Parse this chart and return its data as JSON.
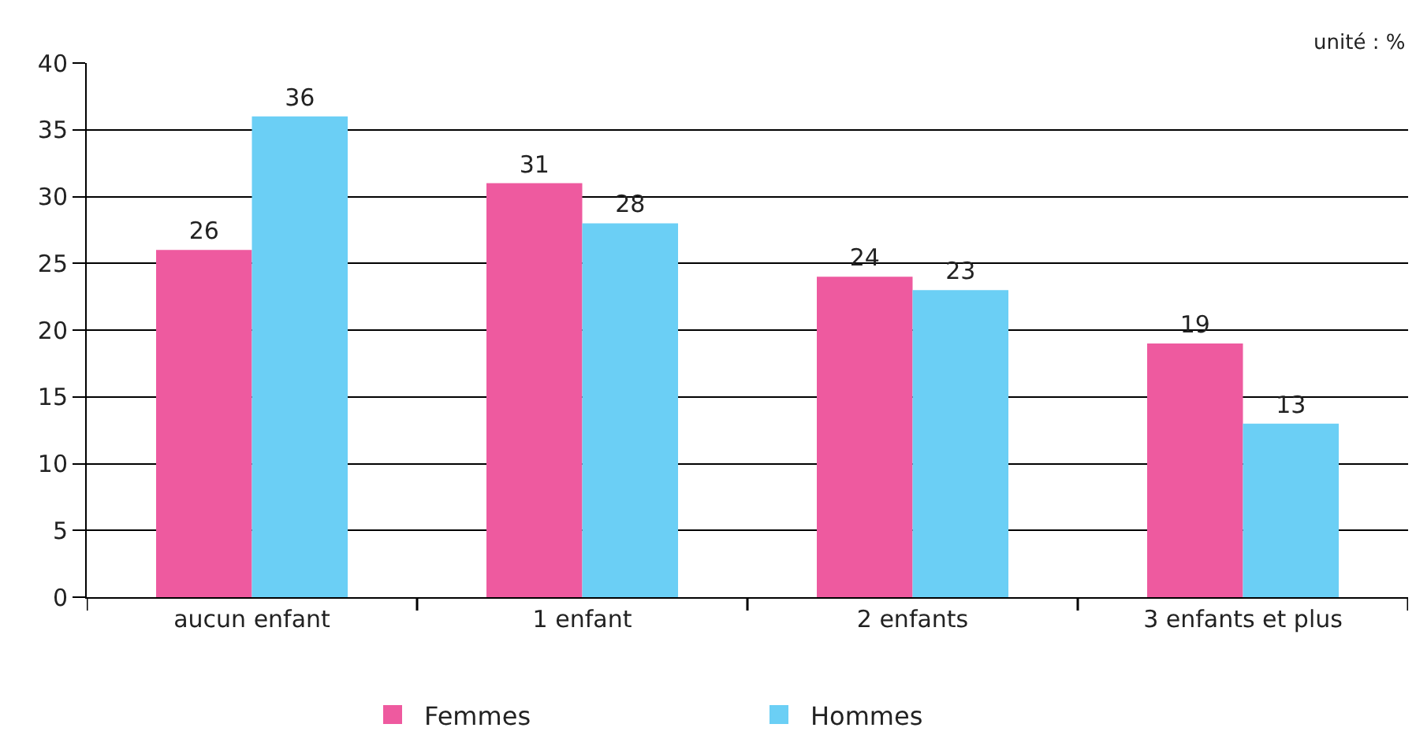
{
  "chart_data": {
    "type": "bar",
    "categories": [
      "aucun enfant",
      "1 enfant",
      "2 enfants",
      "3 enfants et plus"
    ],
    "series": [
      {
        "name": "Femmes",
        "color": "#ee5a9f",
        "values": [
          26,
          31,
          24,
          19
        ]
      },
      {
        "name": "Hommes",
        "color": "#6bcff5",
        "values": [
          36,
          28,
          23,
          13
        ]
      }
    ],
    "ylim": [
      0,
      40
    ],
    "yticks": [
      0,
      5,
      10,
      15,
      20,
      25,
      30,
      35,
      40
    ],
    "grid": "y",
    "legend": "bottom",
    "data_labels": true,
    "annotations": [
      "unité : %"
    ]
  }
}
